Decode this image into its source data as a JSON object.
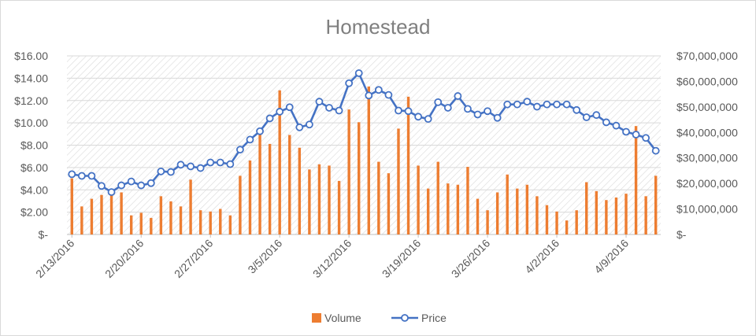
{
  "chart_data": {
    "type": "bar+line",
    "title": "Homestead",
    "x_tick_labels": [
      "2/13/2016",
      "2/20/2016",
      "2/27/2016",
      "3/5/2016",
      "3/12/2016",
      "3/19/2016",
      "3/26/2016",
      "4/2/2016",
      "4/9/2016"
    ],
    "y_left": {
      "range": [
        0,
        16
      ],
      "tick_labels": [
        "$-",
        "$2.00",
        "$4.00",
        "$6.00",
        "$8.00",
        "$10.00",
        "$12.00",
        "$14.00",
        "$16.00"
      ]
    },
    "y_right": {
      "range": [
        0,
        70000000
      ],
      "tick_labels": [
        "$-",
        "$10,000,000",
        "$20,000,000",
        "$30,000,000",
        "$40,000,000",
        "$50,000,000",
        "$60,000,000",
        "$70,000,000"
      ]
    },
    "legend_position": "bottom",
    "series": [
      {
        "name": "Volume",
        "type": "bar",
        "axis": "right",
        "color": "#ed7d31",
        "values": [
          22000000,
          11000000,
          14000000,
          15500000,
          15500000,
          16500000,
          7500000,
          8500000,
          6500000,
          15000000,
          13000000,
          11000000,
          21500000,
          9500000,
          9000000,
          10000000,
          7500000,
          23000000,
          29000000,
          39500000,
          35500000,
          56500000,
          39000000,
          34000000,
          25500000,
          27500000,
          27000000,
          21000000,
          49000000,
          44000000,
          58000000,
          28500000,
          24000000,
          41500000,
          54000000,
          27000000,
          18000000,
          28500000,
          20000000,
          19500000,
          26500000,
          14000000,
          9500000,
          16500000,
          23500000,
          18000000,
          19500000,
          15000000,
          11500000,
          9000000,
          5500000,
          9500000,
          20500000,
          17000000,
          13500000,
          14500000,
          16000000,
          42500000,
          15000000,
          23000000
        ]
      },
      {
        "name": "Price",
        "type": "line",
        "axis": "left",
        "color": "#4472c4",
        "values": [
          5.4,
          5.25,
          5.25,
          4.35,
          3.8,
          4.4,
          4.75,
          4.4,
          4.6,
          5.65,
          5.6,
          6.25,
          6.1,
          5.95,
          6.45,
          6.45,
          6.3,
          7.6,
          8.5,
          9.25,
          10.4,
          11.0,
          11.4,
          9.6,
          9.85,
          11.9,
          11.35,
          11.1,
          13.55,
          14.45,
          12.45,
          12.95,
          12.5,
          11.1,
          11.05,
          10.55,
          10.35,
          11.85,
          11.35,
          12.4,
          11.25,
          10.75,
          11.05,
          10.45,
          11.65,
          11.65,
          11.9,
          11.45,
          11.65,
          11.65,
          11.65,
          11.15,
          10.5,
          10.7,
          10.05,
          9.75,
          9.2,
          8.95,
          8.65,
          7.5
        ]
      }
    ]
  }
}
